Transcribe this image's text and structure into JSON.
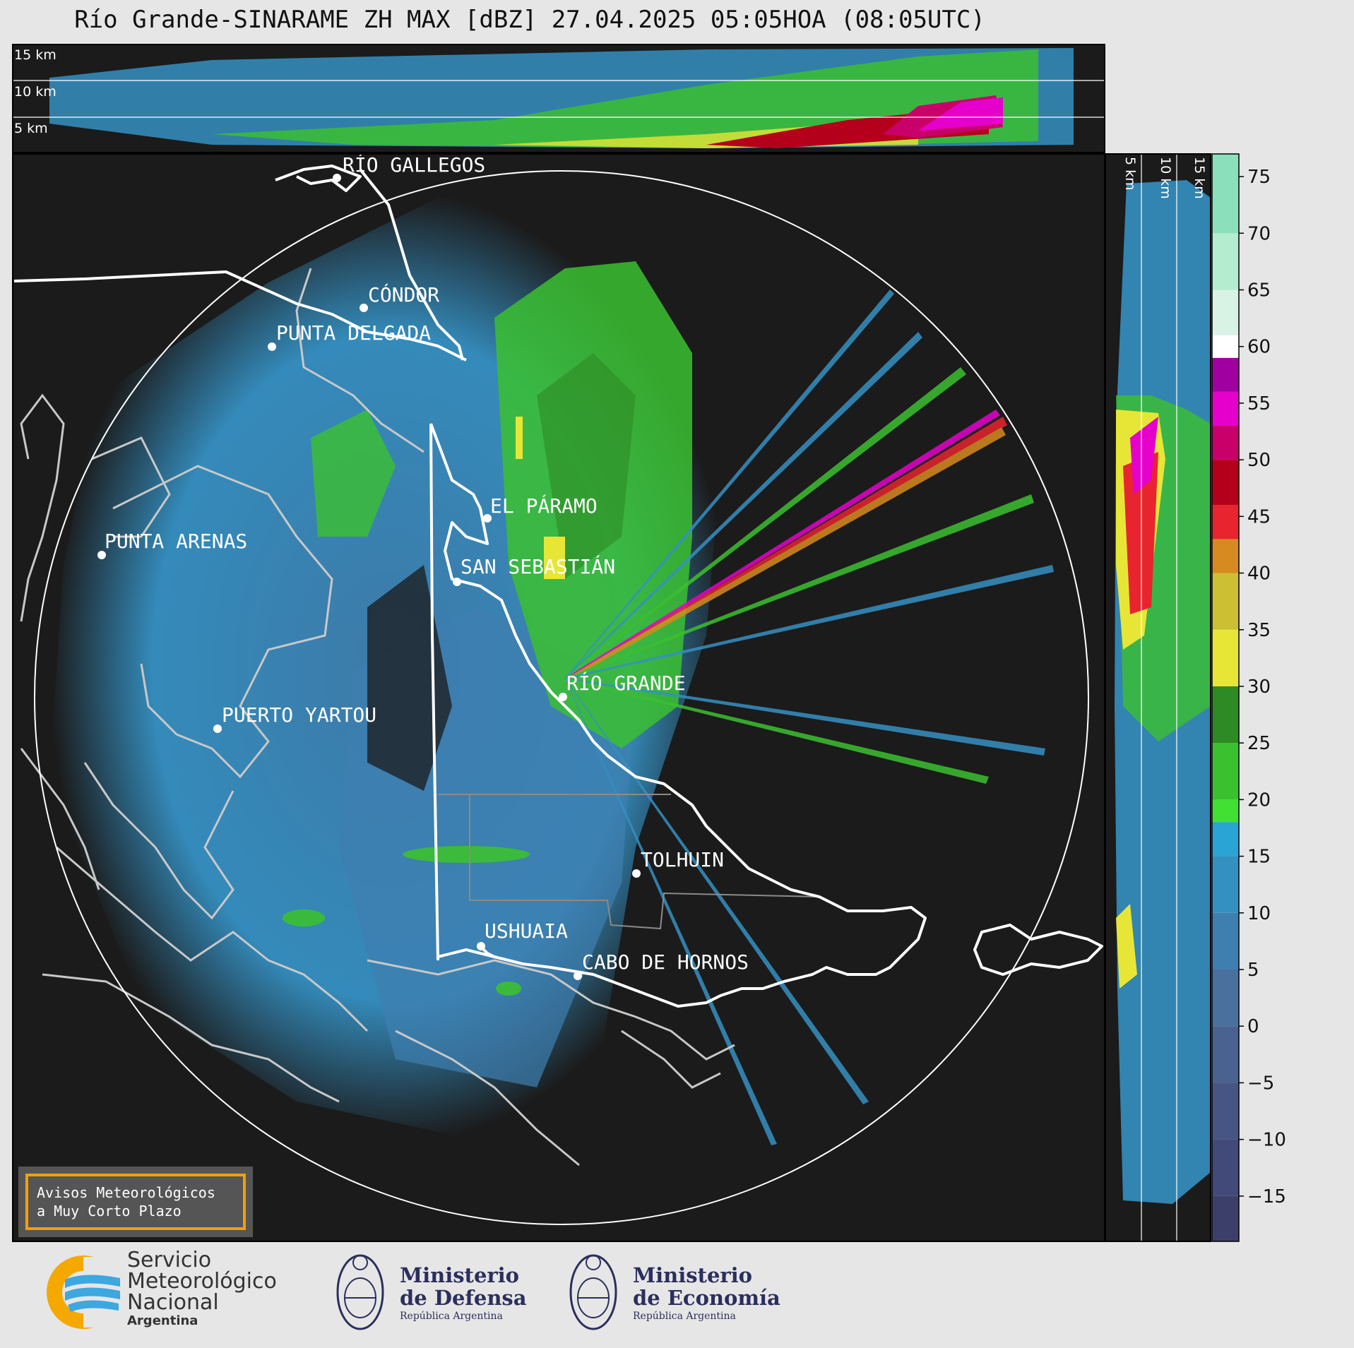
{
  "title": "Río Grande-SINARAME ZH MAX [dBZ] 27.04.2025 05:05HOA (08:05UTC)",
  "top_panel": {
    "labels": [
      "15 km",
      "10 km",
      "5 km"
    ]
  },
  "side_panel": {
    "labels": [
      "5 km",
      "10 km",
      "15 km"
    ]
  },
  "colorbar": {
    "ticks": [
      "75",
      "70",
      "65",
      "60",
      "55",
      "50",
      "45",
      "40",
      "35",
      "30",
      "25",
      "20",
      "15",
      "10",
      "5",
      "0",
      "−5",
      "−10",
      "−15"
    ],
    "tick_values": [
      75,
      70,
      65,
      60,
      55,
      50,
      45,
      40,
      35,
      30,
      25,
      20,
      15,
      10,
      5,
      0,
      -5,
      -10,
      -15
    ],
    "range": [
      -19,
      77
    ],
    "bands": [
      {
        "from": -19,
        "to": -15,
        "color": "#3d3f6b"
      },
      {
        "from": -15,
        "to": -10,
        "color": "#414a78"
      },
      {
        "from": -10,
        "to": -5,
        "color": "#465583"
      },
      {
        "from": -5,
        "to": 0,
        "color": "#4a6290"
      },
      {
        "from": 0,
        "to": 5,
        "color": "#4a709e"
      },
      {
        "from": 5,
        "to": 10,
        "color": "#3f7fb0"
      },
      {
        "from": 10,
        "to": 15,
        "color": "#3590c2"
      },
      {
        "from": 15,
        "to": 18,
        "color": "#2aa3d5"
      },
      {
        "from": 18,
        "to": 20,
        "color": "#42e033"
      },
      {
        "from": 20,
        "to": 25,
        "color": "#3bc030"
      },
      {
        "from": 25,
        "to": 30,
        "color": "#2e8a24"
      },
      {
        "from": 30,
        "to": 35,
        "color": "#e7e636"
      },
      {
        "from": 35,
        "to": 40,
        "color": "#cdbf33"
      },
      {
        "from": 40,
        "to": 43,
        "color": "#d68a1f"
      },
      {
        "from": 43,
        "to": 46,
        "color": "#e8242e"
      },
      {
        "from": 46,
        "to": 50,
        "color": "#b5001b"
      },
      {
        "from": 50,
        "to": 53,
        "color": "#c9006a"
      },
      {
        "from": 53,
        "to": 56,
        "color": "#e600cc"
      },
      {
        "from": 56,
        "to": 59,
        "color": "#a0009f"
      },
      {
        "from": 59,
        "to": 61,
        "color": "#ffffff"
      },
      {
        "from": 61,
        "to": 65,
        "color": "#d8f2e4"
      },
      {
        "from": 65,
        "to": 70,
        "color": "#b4eccf"
      },
      {
        "from": 70,
        "to": 77,
        "color": "#8bdfba"
      }
    ]
  },
  "cities": [
    {
      "name": "RÍO GALLEGOS"
    },
    {
      "name": "CÓNDOR"
    },
    {
      "name": "PUNTA DELGADA"
    },
    {
      "name": "EL PÁRAMO"
    },
    {
      "name": "PUNTA ARENAS"
    },
    {
      "name": "SAN SEBASTIÁN"
    },
    {
      "name": "RÍO GRANDE"
    },
    {
      "name": "PUERTO YARTOU"
    },
    {
      "name": "TOLHUIN"
    },
    {
      "name": "USHUAIA"
    },
    {
      "name": "CABO DE HORNOS"
    }
  ],
  "warning": {
    "line1": "Avisos Meteorológicos",
    "line2": "a Muy Corto Plazo"
  },
  "footer": {
    "smn": {
      "line1": "Servicio",
      "line2": "Meteorológico",
      "line3": "Nacional",
      "line4": "Argentina"
    },
    "defensa": {
      "line1": "Ministerio",
      "line2": "de Defensa",
      "line3": "República Argentina"
    },
    "economia": {
      "line1": "Ministerio",
      "line2": "de Economía",
      "line3": "República Argentina"
    }
  }
}
